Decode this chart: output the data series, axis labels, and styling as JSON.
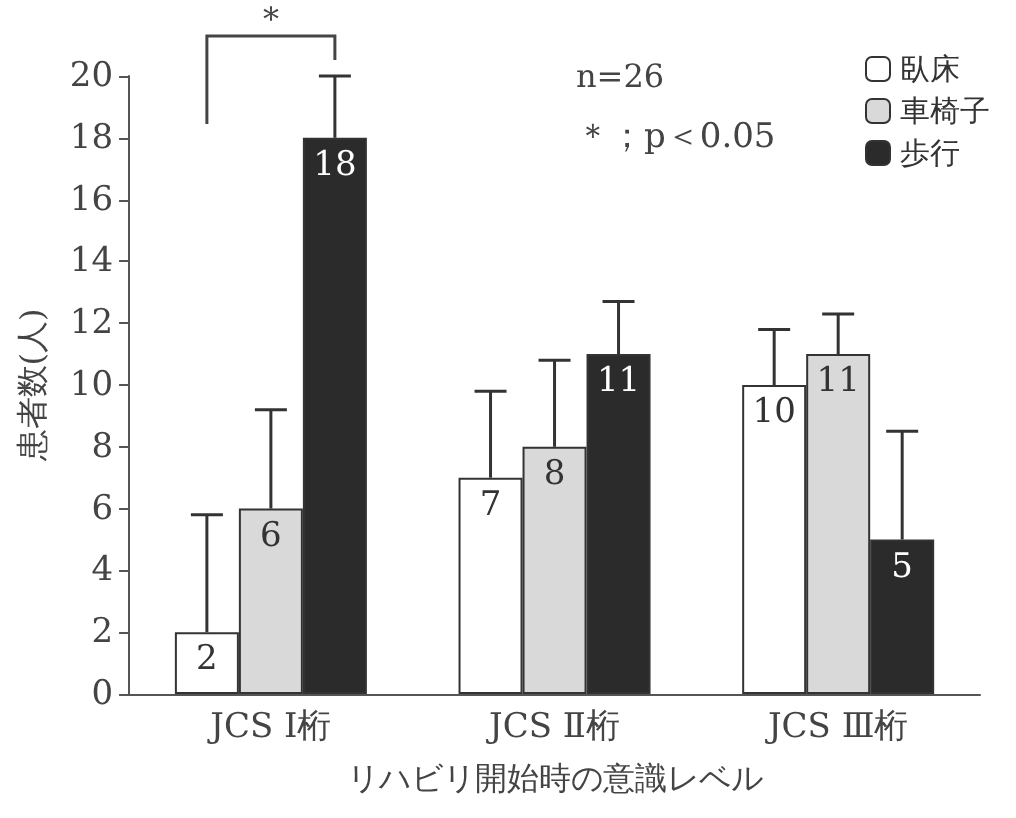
{
  "chart_data": {
    "type": "bar",
    "xlabel": "リハビリ開始時の意識レベル",
    "ylabel": "患者数(人)",
    "categories": [
      "JCS Ⅰ桁",
      "JCS Ⅱ桁",
      "JCS Ⅲ桁"
    ],
    "series": [
      {
        "name": "臥床",
        "color": "#ffffff",
        "values": [
          2,
          7,
          10
        ],
        "errors": [
          [
            2,
            5.8
          ],
          [
            7,
            9.8
          ],
          [
            10,
            11.8
          ]
        ]
      },
      {
        "name": "車椅子",
        "color": "#d9d9d9",
        "values": [
          6,
          8,
          11
        ],
        "errors": [
          [
            6,
            9.2
          ],
          [
            8,
            10.8
          ],
          [
            11,
            12.3
          ]
        ]
      },
      {
        "name": "歩行",
        "color": "#2b2b2b",
        "values": [
          18,
          11,
          5
        ],
        "errors": [
          [
            18,
            20
          ],
          [
            11,
            12.7
          ],
          [
            5,
            8.5
          ]
        ]
      }
    ],
    "ylim": [
      0,
      20
    ],
    "yticks": [
      0,
      2,
      4,
      6,
      8,
      10,
      12,
      14,
      16,
      18,
      20
    ],
    "data_labels": true,
    "grid": false,
    "legend": "top right",
    "annotations": [
      "*",
      "n=26",
      "＊；p＜0.05"
    ]
  }
}
